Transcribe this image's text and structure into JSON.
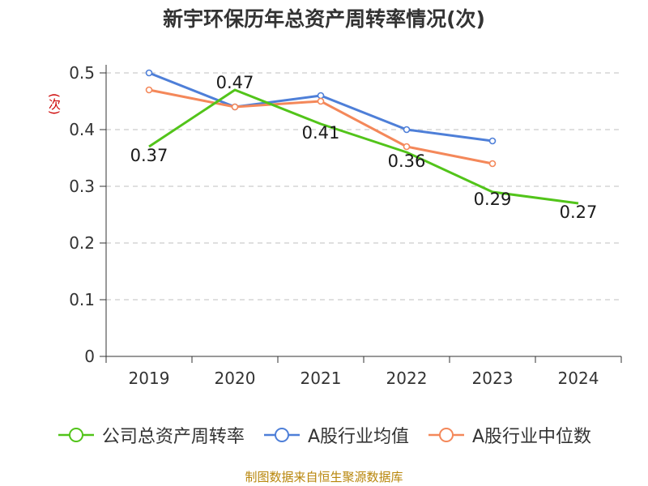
{
  "title": "新宇环保历年总资产周转率情况(次)",
  "source": "制图数据来自恒生聚源数据库",
  "chart_data": {
    "type": "line",
    "title": "新宇环保历年总资产周转率情况(次)",
    "ylabel": "(次)",
    "xlabel": "",
    "categories": [
      "2019",
      "2020",
      "2021",
      "2022",
      "2023",
      "2024"
    ],
    "ylim": [
      0,
      0.5
    ],
    "yticks": [
      "0",
      "0.1",
      "0.2",
      "0.3",
      "0.4",
      "0.5"
    ],
    "grid": true,
    "legend_position": "bottom",
    "series": [
      {
        "name": "公司总资产周转率",
        "color": "#52c41a",
        "values": [
          0.37,
          0.47,
          0.41,
          0.36,
          0.29,
          0.27
        ],
        "labels": [
          "0.37",
          "0.47",
          "0.41",
          "0.36",
          "0.29",
          "0.27"
        ]
      },
      {
        "name": "A股行业均值",
        "color": "#4e7fd8",
        "values": [
          0.5,
          0.44,
          0.46,
          0.4,
          0.38,
          null
        ]
      },
      {
        "name": "A股行业中位数",
        "color": "#f4885a",
        "values": [
          0.47,
          0.44,
          0.45,
          0.37,
          0.34,
          null
        ]
      }
    ]
  }
}
